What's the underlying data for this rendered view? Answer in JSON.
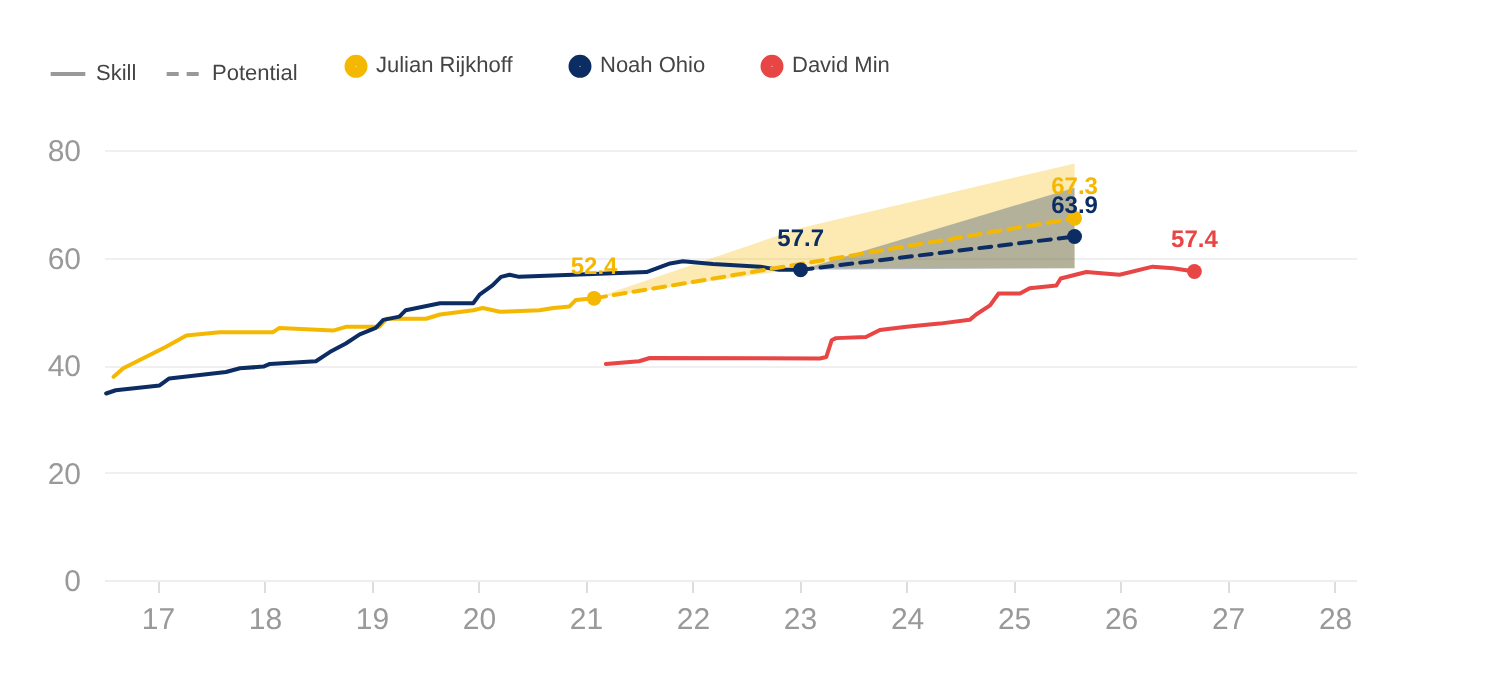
{
  "chart_data": {
    "type": "line",
    "legend": "top left",
    "grid": "y",
    "annotations": [
      "Skill",
      "Potential"
    ],
    "xlim": [
      16.5,
      28.2
    ],
    "xticks": [
      17,
      18,
      19,
      20,
      21,
      22,
      23,
      24,
      25,
      26,
      27,
      28
    ],
    "ylim": [
      0,
      80
    ],
    "yticks": [
      0,
      20,
      40,
      60,
      80
    ],
    "series": [
      {
        "name": "Julian Rijkhoff",
        "color": "#f5b800",
        "x": [
          16.59,
          16.68,
          16.89,
          17.08,
          17.27,
          17.58,
          18.08,
          18.14,
          18.64,
          18.76,
          19.07,
          19.14,
          19.51,
          19.64,
          19.95,
          20.04,
          20.2,
          20.57,
          20.7,
          20.85,
          20.91,
          21.08
        ],
        "values": [
          37.8,
          39.4,
          41.5,
          43.4,
          45.5,
          46.1,
          46.1,
          46.9,
          46.4,
          47.1,
          47.1,
          48.6,
          48.6,
          49.4,
          50.2,
          50.6,
          49.9,
          50.2,
          50.6,
          50.9,
          52.1,
          52.4
        ]
      },
      {
        "name": "Noah Ohio",
        "color": "#0c2d63",
        "x": [
          16.52,
          16.61,
          17.02,
          17.11,
          17.64,
          17.77,
          17.99,
          18.05,
          18.48,
          18.61,
          18.76,
          18.89,
          19.04,
          19.11,
          19.26,
          19.32,
          19.64,
          19.95,
          20.01,
          20.13,
          20.21,
          20.29,
          20.38,
          21.57,
          21.79,
          21.91,
          22.19,
          22.63,
          22.81,
          23.01
        ],
        "values": [
          34.7,
          35.3,
          36.2,
          37.5,
          38.7,
          39.4,
          39.7,
          40.2,
          40.7,
          42.4,
          44.0,
          45.7,
          46.9,
          48.4,
          49.0,
          50.2,
          51.5,
          51.5,
          53.1,
          54.8,
          56.4,
          56.8,
          56.4,
          57.3,
          58.9,
          59.3,
          58.8,
          58.3,
          57.7,
          57.7
        ]
      },
      {
        "name": "David Min",
        "color": "#e84545",
        "x": [
          21.19,
          21.5,
          21.6,
          23.19,
          23.25,
          23.3,
          23.34,
          23.62,
          23.75,
          24.0,
          24.31,
          24.59,
          24.65,
          24.78,
          24.86,
          25.06,
          25.15,
          25.4,
          25.44,
          25.68,
          25.99,
          26.3,
          26.49,
          26.69
        ],
        "values": [
          40.2,
          40.7,
          41.3,
          41.2,
          41.5,
          44.6,
          45.0,
          45.2,
          46.5,
          47.1,
          47.7,
          48.4,
          49.4,
          51.1,
          53.3,
          53.3,
          54.3,
          54.8,
          56.1,
          57.3,
          56.8,
          58.3,
          58.0,
          57.4
        ]
      },
      {
        "type": "line",
        "line_style": "dashed",
        "color": "#f5b800",
        "x": [
          21.08,
          23.01,
          25.57
        ],
        "values": [
          52.4,
          58.8,
          67.3
        ],
        "lower": [
          52.4,
          58,
          58
        ],
        "upper": [
          52.4,
          65.5,
          77.5
        ]
      },
      {
        "type": "line",
        "line_style": "dashed",
        "color": "#0c2d63",
        "x": [
          23.01,
          25.57
        ],
        "values": [
          57.7,
          63.9
        ],
        "lower": [
          57.7,
          58
        ],
        "upper": [
          57.7,
          73
        ]
      },
      {
        "type": "scatter",
        "color": "#f5b800",
        "x": [
          21.08,
          25.57
        ],
        "values": [
          52.4,
          67.3
        ],
        "value_labels": [
          "52.4",
          "67.3"
        ]
      },
      {
        "type": "scatter",
        "color": "#0c2d63",
        "x": [
          23.01,
          25.57
        ],
        "values": [
          57.7,
          63.9
        ],
        "value_labels": [
          "57.7",
          "63.9"
        ]
      },
      {
        "type": "scatter",
        "color": "#e84545",
        "x": [
          26.69
        ],
        "values": [
          57.4
        ],
        "value_labels": [
          "57.4"
        ]
      }
    ]
  }
}
